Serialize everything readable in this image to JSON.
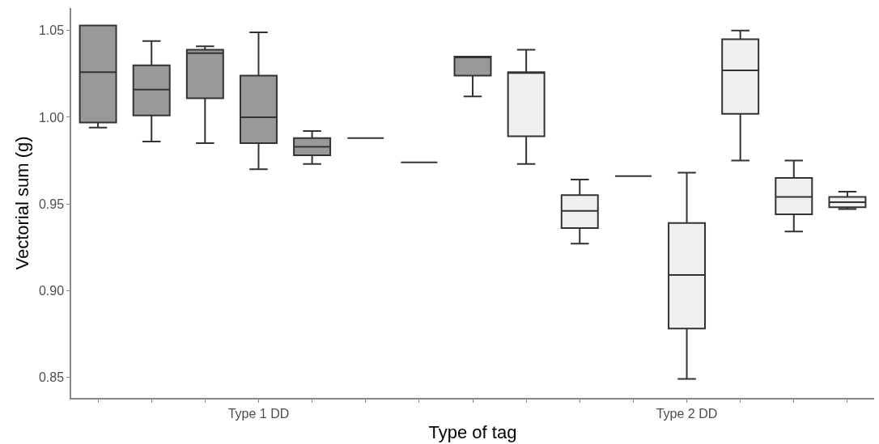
{
  "chart_data": {
    "type": "box",
    "xlabel": "Type of tag",
    "ylabel": "Vectorial sum (g)",
    "categories": [
      null,
      null,
      null,
      "Type 1 DD",
      null,
      null,
      null,
      null,
      null,
      null,
      null,
      "Type 2 DD",
      null,
      null,
      null
    ],
    "colors": [
      "#999999",
      "#999999",
      "#999999",
      "#999999",
      "#999999",
      "#333333",
      "#333333",
      "#999999",
      "#f0f0f0",
      "#f0f0f0",
      "#333333",
      "#f0f0f0",
      "#f0f0f0",
      "#f0f0f0",
      "#f0f0f0"
    ],
    "boxes": [
      {
        "low": 0.994,
        "q1": 0.997,
        "median": 1.026,
        "q3": 1.053,
        "high": 1.053
      },
      {
        "low": 0.986,
        "q1": 1.001,
        "median": 1.016,
        "q3": 1.03,
        "high": 1.044
      },
      {
        "low": 0.985,
        "q1": 1.011,
        "median": 1.037,
        "q3": 1.039,
        "high": 1.041
      },
      {
        "low": 0.97,
        "q1": 0.985,
        "median": 1.0,
        "q3": 1.024,
        "high": 1.049
      },
      {
        "low": 0.973,
        "q1": 0.978,
        "median": 0.983,
        "q3": 0.988,
        "high": 0.992
      },
      {
        "low": 0.988,
        "q1": 0.988,
        "median": 0.988,
        "q3": 0.988,
        "high": 0.988
      },
      {
        "low": 0.974,
        "q1": 0.974,
        "median": 0.974,
        "q3": 0.974,
        "high": 0.974
      },
      {
        "low": 1.012,
        "q1": 1.024,
        "median": 1.035,
        "q3": 1.035,
        "high": 1.035
      },
      {
        "low": 0.973,
        "q1": 0.989,
        "median": 1.026,
        "q3": 1.026,
        "high": 1.039
      },
      {
        "low": 0.927,
        "q1": 0.936,
        "median": 0.946,
        "q3": 0.955,
        "high": 0.964
      },
      {
        "low": 0.966,
        "q1": 0.966,
        "median": 0.966,
        "q3": 0.966,
        "high": 0.966
      },
      {
        "low": 0.849,
        "q1": 0.878,
        "median": 0.909,
        "q3": 0.939,
        "high": 0.968
      },
      {
        "low": 0.975,
        "q1": 1.002,
        "median": 1.027,
        "q3": 1.045,
        "high": 1.05
      },
      {
        "low": 0.934,
        "q1": 0.944,
        "median": 0.954,
        "q3": 0.965,
        "high": 0.975
      },
      {
        "low": 0.947,
        "q1": 0.948,
        "median": 0.951,
        "q3": 0.954,
        "high": 0.957
      }
    ],
    "ylim": [
      0.838,
      1.063
    ],
    "yticks": [
      0.85,
      {
        "value": 0.9,
        "label": "0.90"
      },
      0.95,
      {
        "value": 1,
        "label": "1.00"
      },
      1.05
    ]
  }
}
